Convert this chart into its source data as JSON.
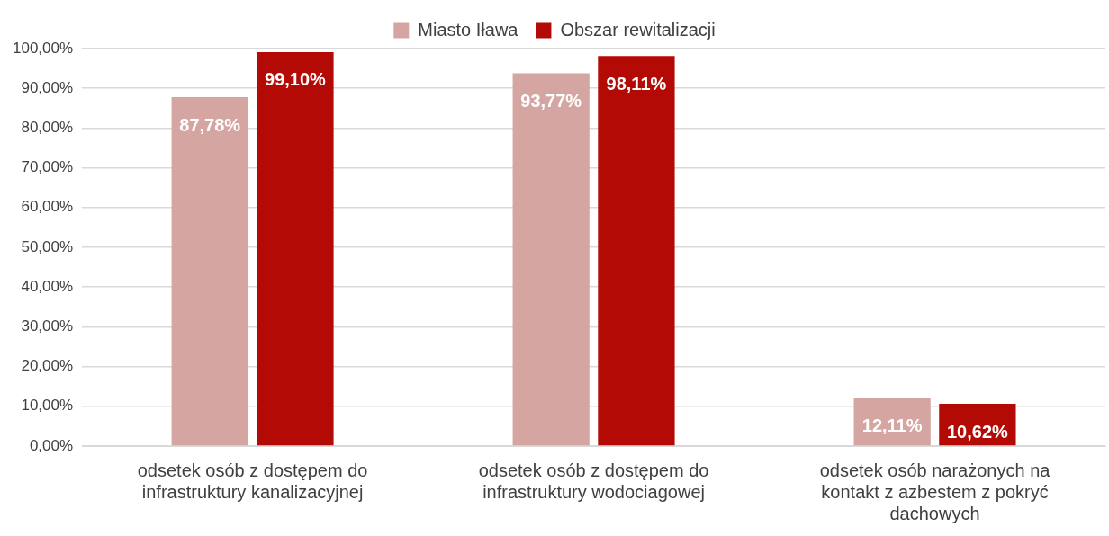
{
  "chart_data": {
    "type": "bar",
    "categories": [
      "odsetek osób z dostępem do infrastruktury kanalizacyjnej",
      "odsetek osób z dostępem do infrastruktury wodociagowej",
      "odsetek osób narażonych na kontakt z azbestem z pokryć dachowych"
    ],
    "series": [
      {
        "name": "Miasto Iława",
        "color": "#d5a6a1",
        "values": [
          87.78,
          93.77,
          12.11
        ],
        "value_labels": [
          "87,78%",
          "93,77%",
          "12,11%"
        ]
      },
      {
        "name": "Obszar rewitalizacji",
        "color": "#b30a05",
        "values": [
          99.1,
          98.11,
          10.62
        ],
        "value_labels": [
          "99,10%",
          "98,11%",
          "10,62%"
        ]
      }
    ],
    "ylim": [
      0,
      100
    ],
    "yticks": [
      {
        "value": 0,
        "label": "0,00%"
      },
      {
        "value": 10,
        "label": "10,00%"
      },
      {
        "value": 20,
        "label": "20,00%"
      },
      {
        "value": 30,
        "label": "30,00%"
      },
      {
        "value": 40,
        "label": "40,00%"
      },
      {
        "value": 50,
        "label": "50,00%"
      },
      {
        "value": 60,
        "label": "60,00%"
      },
      {
        "value": 70,
        "label": "70,00%"
      },
      {
        "value": 80,
        "label": "80,00%"
      },
      {
        "value": 90,
        "label": "90,00%"
      },
      {
        "value": 100,
        "label": "100,00%"
      }
    ],
    "grid": "y",
    "legend": "top"
  }
}
